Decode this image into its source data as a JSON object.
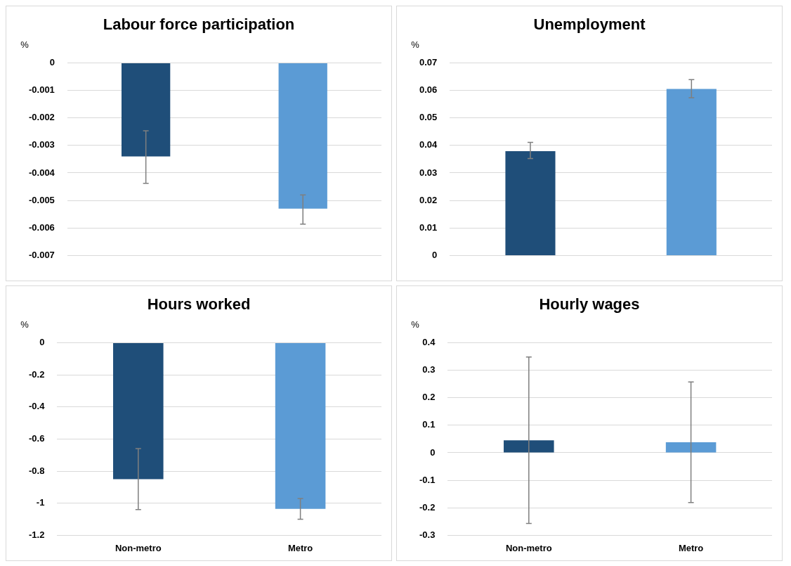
{
  "chart_data": [
    {
      "type": "bar",
      "title": "Labour force participation",
      "ylabel": "%",
      "categories": [
        null,
        null
      ],
      "values": [
        -0.0034,
        -0.0053
      ],
      "colors": [
        "#1f4e79",
        "#5b9bd5"
      ],
      "errors": [
        [
          -0.00438,
          -0.00247
        ],
        [
          -0.00586,
          -0.0048
        ]
      ],
      "ylim": [
        -0.007,
        0
      ],
      "yticks": [
        -0.007,
        -0.006,
        -0.005,
        -0.004,
        -0.003,
        -0.002,
        -0.001,
        0
      ],
      "grid": "y"
    },
    {
      "type": "bar",
      "title": "Unemployment",
      "ylabel": "%",
      "categories": [
        null,
        null
      ],
      "values": [
        0.0379,
        0.0605
      ],
      "colors": [
        "#1f4e79",
        "#5b9bd5"
      ],
      "errors": [
        [
          0.0352,
          0.0411
        ],
        [
          0.0573,
          0.0639
        ]
      ],
      "ylim": [
        0,
        0.07
      ],
      "yticks": [
        0,
        0.01,
        0.02,
        0.03,
        0.04,
        0.05,
        0.06,
        0.07
      ],
      "grid": "y"
    },
    {
      "type": "bar",
      "title": "Hours worked",
      "ylabel": "%",
      "categories": [
        "Non-metro",
        "Metro"
      ],
      "values": [
        -0.85,
        -1.035
      ],
      "colors": [
        "#1f4e79",
        "#5b9bd5"
      ],
      "errors": [
        [
          -1.04,
          -0.66
        ],
        [
          -1.1,
          -0.97
        ]
      ],
      "ylim": [
        -1.2,
        0
      ],
      "yticks": [
        -1.2,
        -1,
        -0.8,
        -0.6,
        -0.4,
        -0.2,
        0
      ],
      "grid": "y"
    },
    {
      "type": "bar",
      "title": "Hourly wages",
      "ylabel": "%",
      "categories": [
        "Non-metro",
        "Metro"
      ],
      "values": [
        0.045,
        0.038
      ],
      "colors": [
        "#1f4e79",
        "#5b9bd5"
      ],
      "errors": [
        [
          -0.257,
          0.348
        ],
        [
          -0.181,
          0.257
        ]
      ],
      "ylim": [
        -0.3,
        0.4
      ],
      "yticks": [
        -0.3,
        -0.2,
        -0.1,
        0,
        0.1,
        0.2,
        0.3,
        0.4
      ],
      "grid": "y"
    }
  ]
}
